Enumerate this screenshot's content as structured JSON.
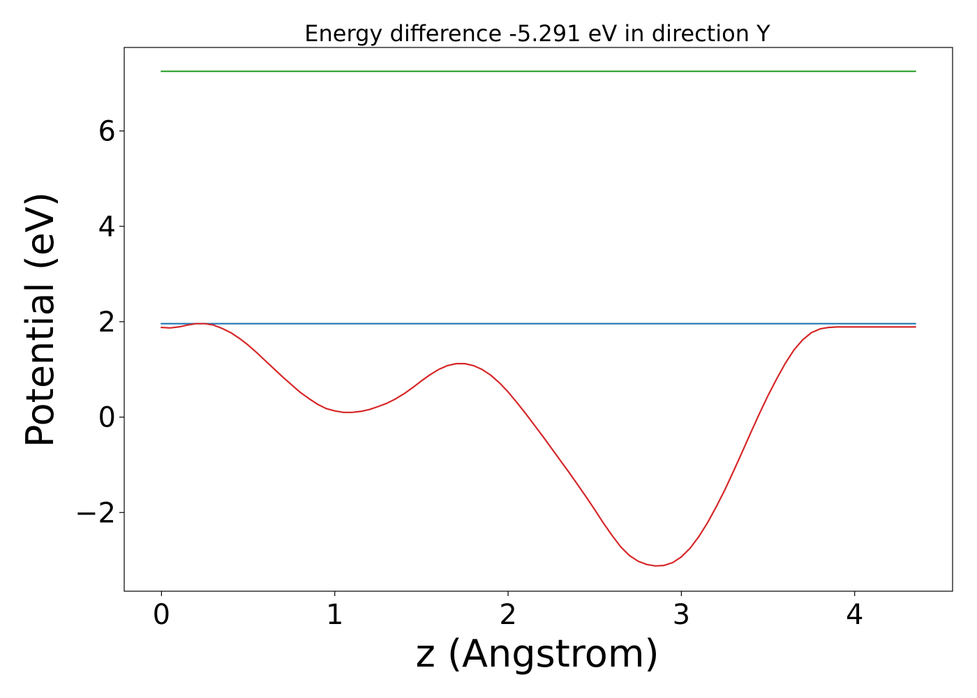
{
  "chart_data": {
    "type": "line",
    "title": "Energy difference -5.291 eV in direction Y",
    "xlabel": "z (Angstrom)",
    "ylabel": "Potential (eV)",
    "xlim": [
      -0.215,
      4.565
    ],
    "ylim": [
      -3.65,
      7.75
    ],
    "xticks": [
      0,
      1,
      2,
      3,
      4
    ],
    "xtick_labels": [
      "0",
      "1",
      "2",
      "3",
      "4"
    ],
    "yticks": [
      -2,
      0,
      2,
      4,
      6
    ],
    "ytick_labels": [
      "−2",
      "0",
      "2",
      "4",
      "6"
    ],
    "grid": false,
    "series": [
      {
        "color": "#2ca02c",
        "x": [
          0,
          4.35
        ],
        "y": [
          7.25,
          7.25
        ]
      },
      {
        "color": "#1f77b4",
        "x": [
          0,
          4.35
        ],
        "y": [
          1.96,
          1.96
        ]
      },
      {
        "color": "#d62728",
        "x": [
          0,
          0.05,
          0.1,
          0.15,
          0.2,
          0.25,
          0.3,
          0.35,
          0.4,
          0.45,
          0.5,
          0.55,
          0.6,
          0.65,
          0.7,
          0.75,
          0.8,
          0.85,
          0.9,
          0.95,
          1.0,
          1.05,
          1.1,
          1.15,
          1.2,
          1.25,
          1.3,
          1.35,
          1.4,
          1.45,
          1.5,
          1.55,
          1.6,
          1.65,
          1.7,
          1.75,
          1.8,
          1.85,
          1.9,
          1.95,
          2.0,
          2.05,
          2.1,
          2.15,
          2.2,
          2.25,
          2.3,
          2.35,
          2.4,
          2.45,
          2.5,
          2.55,
          2.6,
          2.65,
          2.7,
          2.75,
          2.8,
          2.85,
          2.9,
          2.95,
          3.0,
          3.05,
          3.1,
          3.15,
          3.2,
          3.25,
          3.3,
          3.35,
          3.4,
          3.45,
          3.5,
          3.55,
          3.6,
          3.65,
          3.7,
          3.75,
          3.8,
          3.85,
          3.9,
          3.95,
          4.0,
          4.05,
          4.1,
          4.15,
          4.2,
          4.25,
          4.3,
          4.35
        ],
        "y": [
          1.88,
          1.87,
          1.89,
          1.93,
          1.96,
          1.96,
          1.93,
          1.86,
          1.77,
          1.65,
          1.51,
          1.35,
          1.18,
          1.01,
          0.84,
          0.68,
          0.52,
          0.39,
          0.27,
          0.18,
          0.13,
          0.1,
          0.1,
          0.12,
          0.16,
          0.22,
          0.29,
          0.38,
          0.49,
          0.62,
          0.76,
          0.89,
          1.0,
          1.08,
          1.12,
          1.12,
          1.08,
          1.0,
          0.88,
          0.72,
          0.53,
          0.31,
          0.08,
          -0.16,
          -0.4,
          -0.65,
          -0.9,
          -1.15,
          -1.41,
          -1.67,
          -1.94,
          -2.22,
          -2.48,
          -2.72,
          -2.9,
          -3.02,
          -3.09,
          -3.12,
          -3.11,
          -3.05,
          -2.93,
          -2.75,
          -2.51,
          -2.22,
          -1.89,
          -1.53,
          -1.14,
          -0.74,
          -0.33,
          0.07,
          0.45,
          0.8,
          1.13,
          1.41,
          1.62,
          1.77,
          1.85,
          1.88,
          1.89,
          1.89,
          1.89,
          1.89,
          1.89,
          1.89,
          1.89,
          1.89,
          1.89,
          1.89
        ]
      }
    ]
  }
}
